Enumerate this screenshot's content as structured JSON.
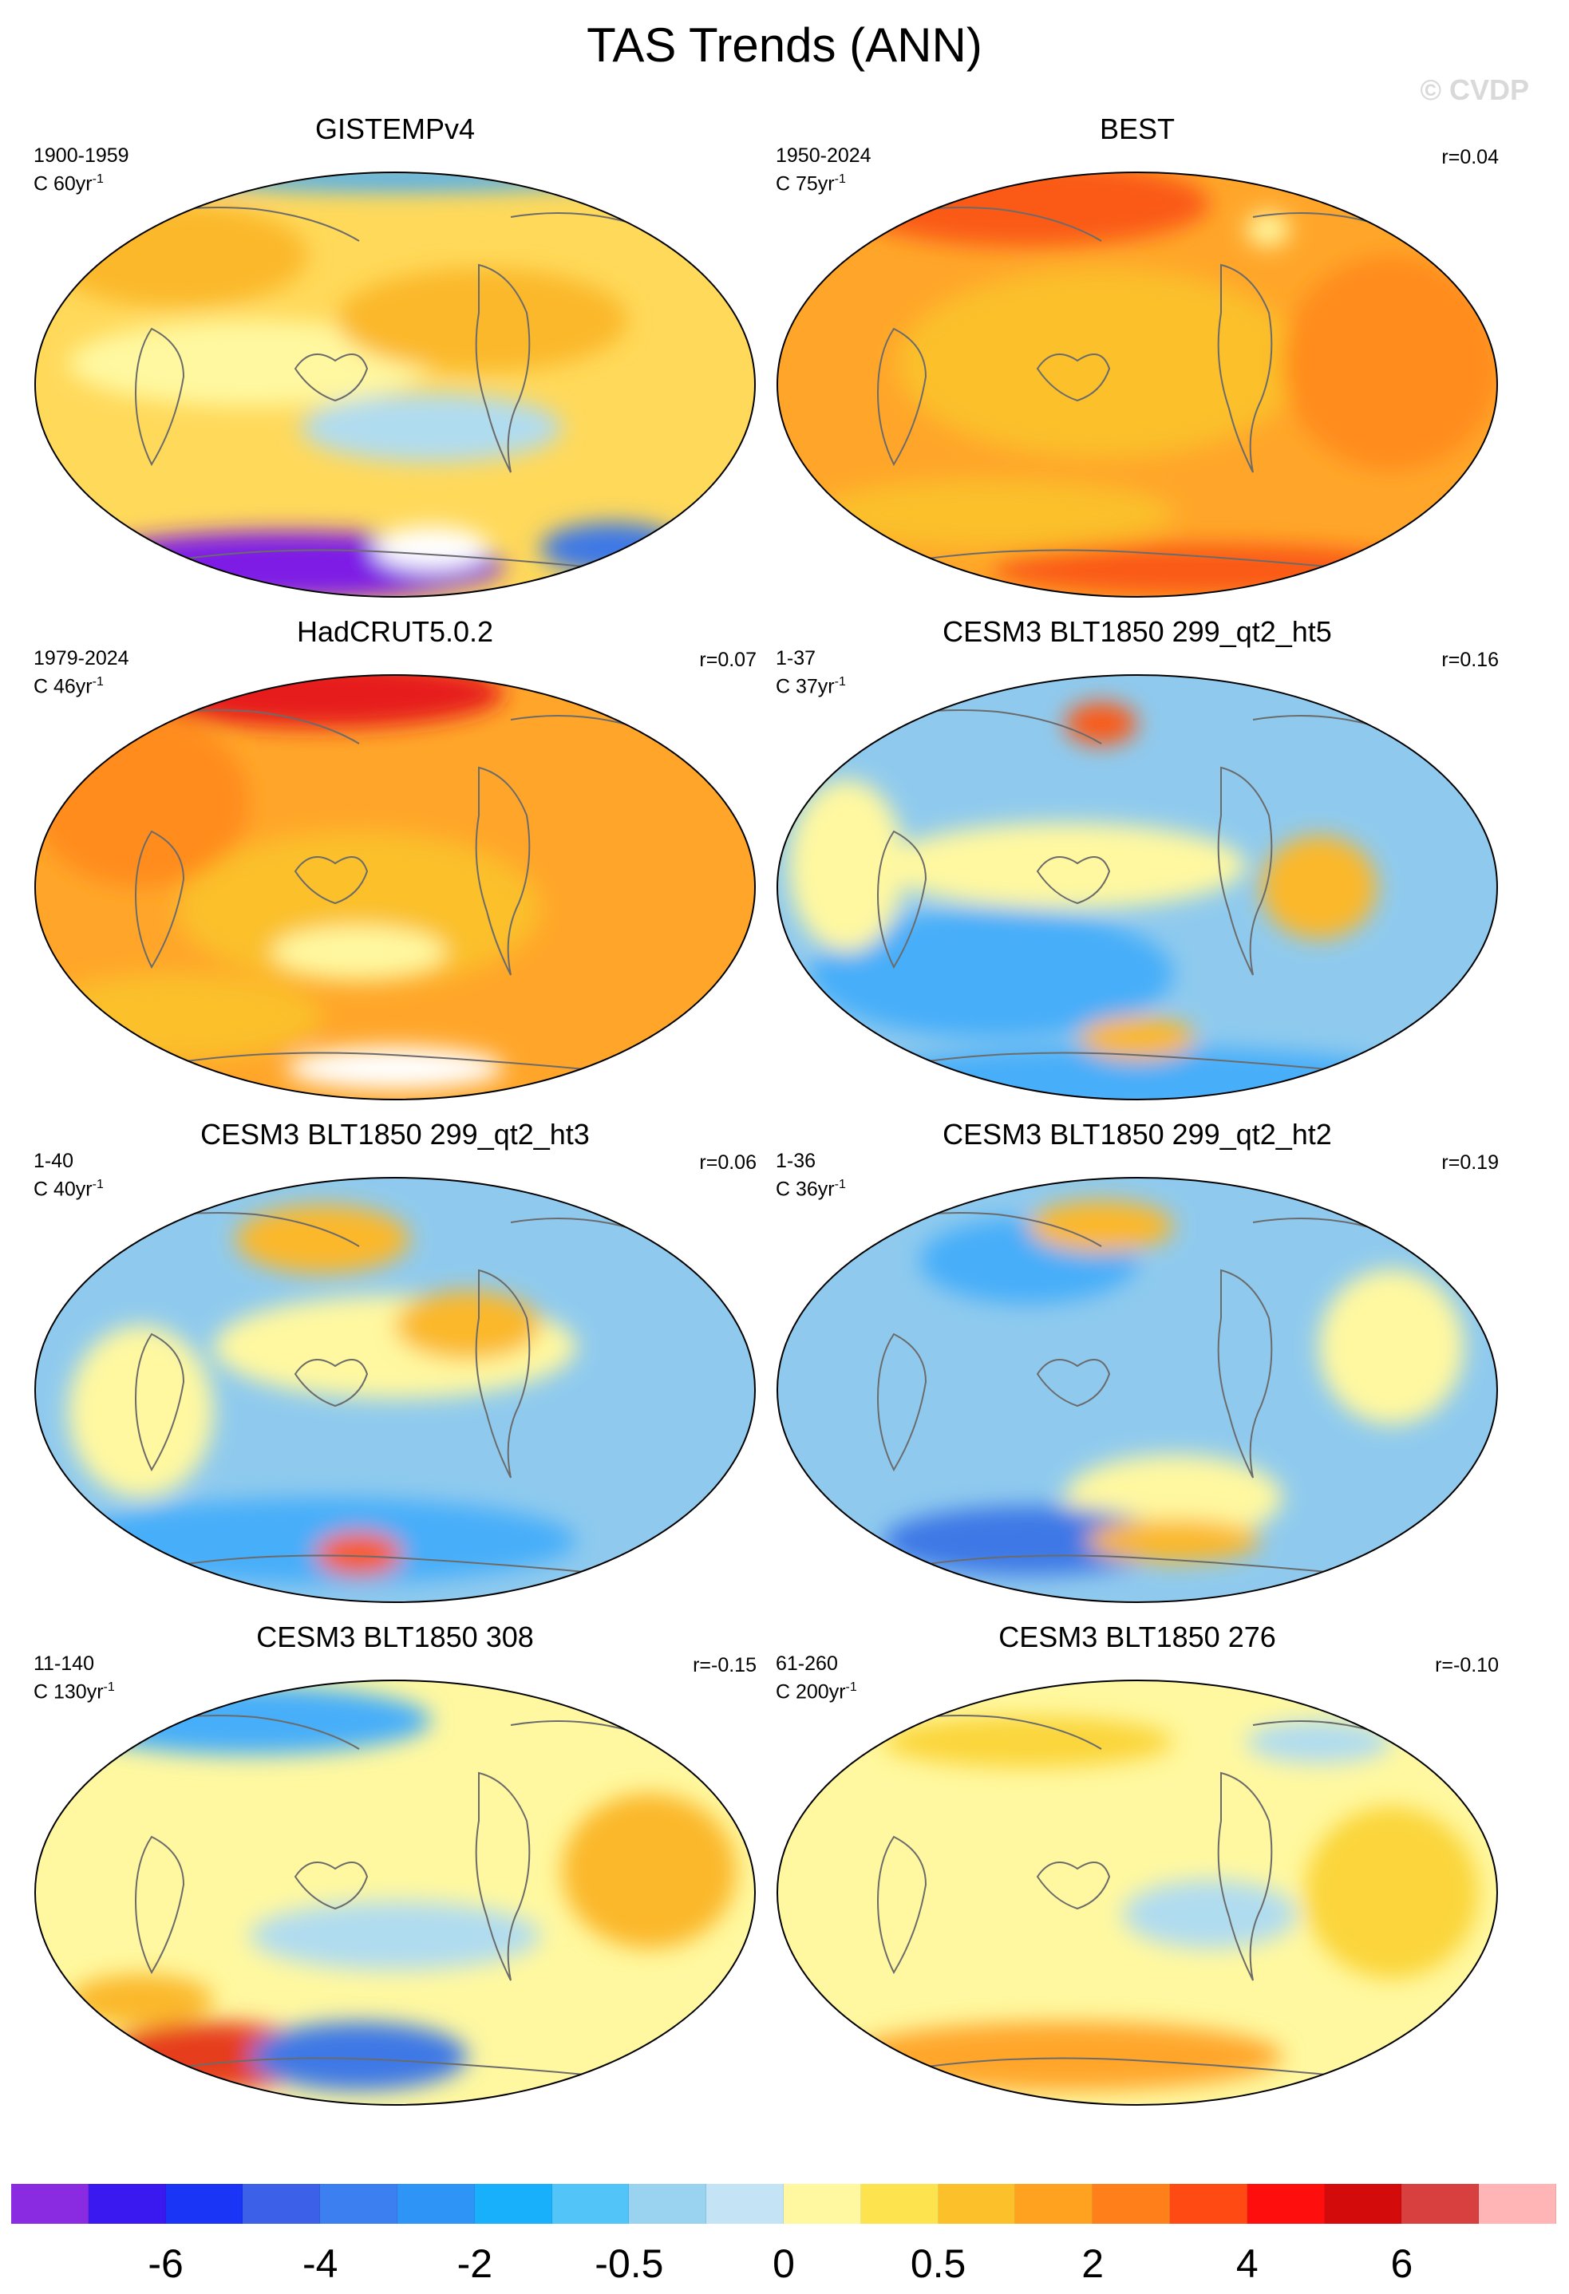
{
  "title": "TAS Trends (ANN)",
  "watermark": "© CVDP",
  "panels": [
    {
      "title": "GISTEMPv4",
      "period": "1900-1959",
      "trend_prefix": "C ",
      "trend_value": "60yr",
      "trend_exp": "-1",
      "corr": "",
      "base": "#ffd95a",
      "blobs": [
        [
          "#fff8a0",
          0.3,
          0.45,
          0.25,
          0.1
        ],
        [
          "#b0dcf0",
          0.55,
          0.6,
          0.18,
          0.08
        ],
        [
          "#fbb829",
          0.62,
          0.35,
          0.2,
          0.12
        ],
        [
          "#7e1ee6",
          0.35,
          0.92,
          0.3,
          0.08
        ],
        [
          "#3c78e6",
          0.8,
          0.88,
          0.1,
          0.06
        ],
        [
          "#ffffff",
          0.55,
          0.88,
          0.08,
          0.05
        ],
        [
          "#fbb829",
          0.2,
          0.2,
          0.18,
          0.12
        ],
        [
          "#47aef9",
          0.5,
          0.02,
          0.3,
          0.03
        ]
      ]
    },
    {
      "title": "BEST",
      "period": "1950-2024",
      "trend_prefix": "C ",
      "trend_value": "75yr",
      "trend_exp": "-1",
      "corr": "r=0.04",
      "base": "#ffa62a",
      "blobs": [
        [
          "#fa5a16",
          0.35,
          0.08,
          0.25,
          0.1
        ],
        [
          "#fbc02a",
          0.45,
          0.45,
          0.28,
          0.22
        ],
        [
          "#ff8c1a",
          0.85,
          0.45,
          0.15,
          0.25
        ],
        [
          "#fbc02a",
          0.3,
          0.8,
          0.25,
          0.08
        ],
        [
          "#fa5a16",
          0.6,
          0.93,
          0.3,
          0.06
        ],
        [
          "#fff8a0",
          0.68,
          0.14,
          0.03,
          0.04
        ]
      ]
    },
    {
      "title": "HadCRUT5.0.2",
      "period": "1979-2024",
      "trend_prefix": "C ",
      "trend_value": "46yr",
      "trend_exp": "-1",
      "corr": "r=0.07",
      "base": "#ffa62a",
      "blobs": [
        [
          "#e61a1a",
          0.4,
          0.05,
          0.25,
          0.08
        ],
        [
          "#fbc02a",
          0.45,
          0.55,
          0.25,
          0.18
        ],
        [
          "#fff8a0",
          0.45,
          0.65,
          0.12,
          0.06
        ],
        [
          "#ffffff",
          0.5,
          0.92,
          0.15,
          0.05
        ],
        [
          "#ff8c1a",
          0.15,
          0.3,
          0.15,
          0.2
        ],
        [
          "#fbc02a",
          0.2,
          0.8,
          0.2,
          0.1
        ]
      ]
    },
    {
      "title": "CESM3 BLT1850 299_qt2_ht5",
      "period": "1-37",
      "trend_prefix": "C ",
      "trend_value": "37yr",
      "trend_exp": "-1",
      "corr": "r=0.16",
      "base": "#8fcaee",
      "blobs": [
        [
          "#fff8a0",
          0.4,
          0.45,
          0.25,
          0.1
        ],
        [
          "#47aef9",
          0.3,
          0.7,
          0.25,
          0.15
        ],
        [
          "#fbb829",
          0.75,
          0.5,
          0.08,
          0.12
        ],
        [
          "#47aef9",
          0.5,
          0.95,
          0.4,
          0.08
        ],
        [
          "#fa5a16",
          0.45,
          0.12,
          0.05,
          0.05
        ],
        [
          "#fbb829",
          0.5,
          0.85,
          0.08,
          0.05
        ],
        [
          "#fff8a0",
          0.1,
          0.45,
          0.08,
          0.2
        ]
      ]
    },
    {
      "title": "CESM3 BLT1850 299_qt2_ht3",
      "period": "1-40",
      "trend_prefix": "C ",
      "trend_value": "40yr",
      "trend_exp": "-1",
      "corr": "r=0.06",
      "base": "#8fcaee",
      "blobs": [
        [
          "#fff8a0",
          0.5,
          0.4,
          0.25,
          0.12
        ],
        [
          "#fbb829",
          0.6,
          0.35,
          0.1,
          0.08
        ],
        [
          "#47aef9",
          0.4,
          0.85,
          0.35,
          0.1
        ],
        [
          "#fa5a16",
          0.45,
          0.88,
          0.06,
          0.05
        ],
        [
          "#fbb829",
          0.4,
          0.15,
          0.12,
          0.08
        ],
        [
          "#fff8a0",
          0.15,
          0.55,
          0.1,
          0.2
        ]
      ]
    },
    {
      "title": "CESM3 BLT1850 299_qt2_ht2",
      "period": "1-36",
      "trend_prefix": "C ",
      "trend_value": "36yr",
      "trend_exp": "-1",
      "corr": "r=0.19",
      "base": "#8fcaee",
      "blobs": [
        [
          "#fff8a0",
          0.55,
          0.75,
          0.15,
          0.1
        ],
        [
          "#3c78e6",
          0.35,
          0.85,
          0.2,
          0.08
        ],
        [
          "#fbb829",
          0.55,
          0.85,
          0.12,
          0.05
        ],
        [
          "#47aef9",
          0.35,
          0.2,
          0.15,
          0.1
        ],
        [
          "#fbb829",
          0.45,
          0.12,
          0.1,
          0.06
        ],
        [
          "#fff8a0",
          0.85,
          0.4,
          0.1,
          0.18
        ]
      ]
    },
    {
      "title": "CESM3 BLT1850 308",
      "period": "11-140",
      "trend_prefix": "C ",
      "trend_value": "130yr",
      "trend_exp": "-1",
      "corr": "r=-0.15",
      "base": "#fff8a0",
      "blobs": [
        [
          "#47aef9",
          0.3,
          0.1,
          0.25,
          0.08
        ],
        [
          "#e63c1a",
          0.25,
          0.88,
          0.15,
          0.08
        ],
        [
          "#3c78e6",
          0.45,
          0.88,
          0.15,
          0.08
        ],
        [
          "#b0dcf0",
          0.5,
          0.6,
          0.2,
          0.08
        ],
        [
          "#fbb829",
          0.85,
          0.45,
          0.12,
          0.18
        ],
        [
          "#fbb829",
          0.15,
          0.75,
          0.1,
          0.06
        ]
      ]
    },
    {
      "title": "CESM3 BLT1850 276",
      "period": "61-260",
      "trend_prefix": "C ",
      "trend_value": "200yr",
      "trend_exp": "-1",
      "corr": "r=-0.10",
      "base": "#fff8a0",
      "blobs": [
        [
          "#ffa62a",
          0.4,
          0.88,
          0.3,
          0.08
        ],
        [
          "#fbd53a",
          0.85,
          0.5,
          0.12,
          0.2
        ],
        [
          "#b0dcf0",
          0.6,
          0.55,
          0.12,
          0.08
        ],
        [
          "#fbd53a",
          0.35,
          0.15,
          0.2,
          0.06
        ],
        [
          "#b0dcf0",
          0.75,
          0.15,
          0.1,
          0.05
        ]
      ]
    }
  ],
  "colorbar": {
    "colors": [
      "#8a2be2",
      "#3a18f0",
      "#1a35f5",
      "#3d60e8",
      "#3c7ff0",
      "#2e95f6",
      "#18b0fa",
      "#52c4f8",
      "#9ad3f0",
      "#c4e4f6",
      "#fff8a0",
      "#fde34d",
      "#fbc02a",
      "#ffa21f",
      "#ff7f1a",
      "#ff4a14",
      "#ff0e0e",
      "#d40b0b",
      "#d84040",
      "#ffb5b5"
    ],
    "labels": [
      "-6",
      "-4",
      "-2",
      "-0.5",
      "0",
      "0.5",
      "2",
      "4",
      "6"
    ]
  }
}
